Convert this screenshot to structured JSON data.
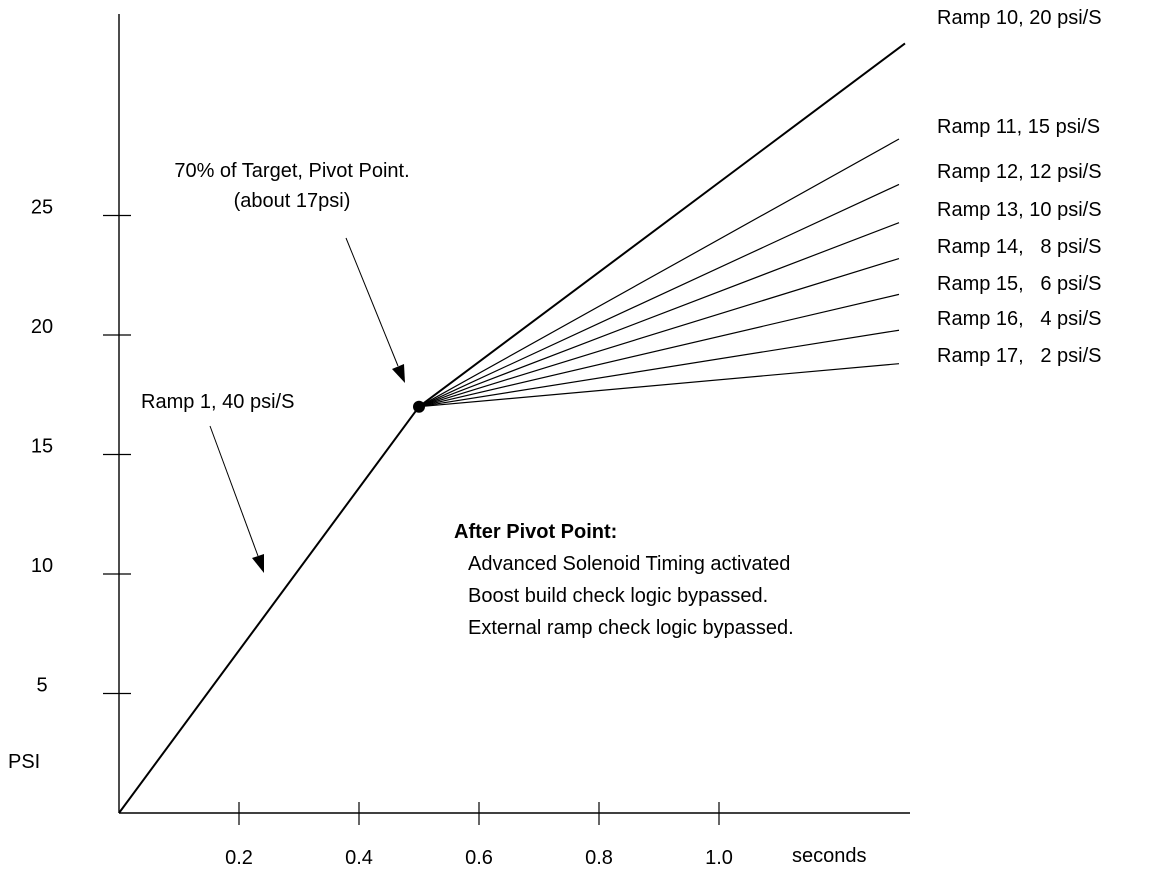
{
  "chart_data": {
    "type": "line",
    "xlabel": "seconds",
    "ylabel": "PSI",
    "x_ticks": [
      "0.2",
      "0.4",
      "0.6",
      "0.8",
      "1.0"
    ],
    "y_ticks": [
      "5",
      "10",
      "15",
      "20",
      "25"
    ],
    "xlim": [
      0,
      1.3
    ],
    "ylim": [
      0,
      33
    ],
    "pivot": {
      "x": 0.5,
      "y": 17
    },
    "series": [
      {
        "name": "Ramp 1, 40 psi/S",
        "rate": 40,
        "x": [
          0,
          0.5
        ],
        "y": [
          0,
          17
        ]
      },
      {
        "name": "Ramp 10, 20 psi/S",
        "rate": 20,
        "x": [
          0.5,
          1.31
        ],
        "y": [
          17,
          32.2
        ]
      },
      {
        "name": "Ramp 11, 15 psi/S",
        "rate": 15,
        "x": [
          0.5,
          1.3
        ],
        "y": [
          17,
          28.2
        ]
      },
      {
        "name": "Ramp 12, 12 psi/S",
        "rate": 12,
        "x": [
          0.5,
          1.3
        ],
        "y": [
          17,
          26.3
        ]
      },
      {
        "name": "Ramp 13, 10 psi/S",
        "rate": 10,
        "x": [
          0.5,
          1.3
        ],
        "y": [
          17,
          24.7
        ]
      },
      {
        "name": "Ramp 14,   8 psi/S",
        "rate": 8,
        "x": [
          0.5,
          1.3
        ],
        "y": [
          17,
          23.2
        ]
      },
      {
        "name": "Ramp 15,   6 psi/S",
        "rate": 6,
        "x": [
          0.5,
          1.3
        ],
        "y": [
          17,
          21.7
        ]
      },
      {
        "name": "Ramp 16,   4 psi/S",
        "rate": 4,
        "x": [
          0.5,
          1.3
        ],
        "y": [
          17,
          20.2
        ]
      },
      {
        "name": "Ramp 17,   2 psi/S",
        "rate": 2,
        "x": [
          0.5,
          1.3
        ],
        "y": [
          17,
          18.8
        ]
      }
    ],
    "annotations": {
      "pivot_label": [
        "70% of Target, Pivot Point.",
        "(about 17psi)"
      ],
      "ramp1_label": "Ramp 1, 40 psi/S",
      "note_title": "After Pivot Point:",
      "note_lines": [
        "Advanced Solenoid Timing activated",
        "Boost build check logic bypassed.",
        "External ramp check logic bypassed."
      ]
    }
  }
}
